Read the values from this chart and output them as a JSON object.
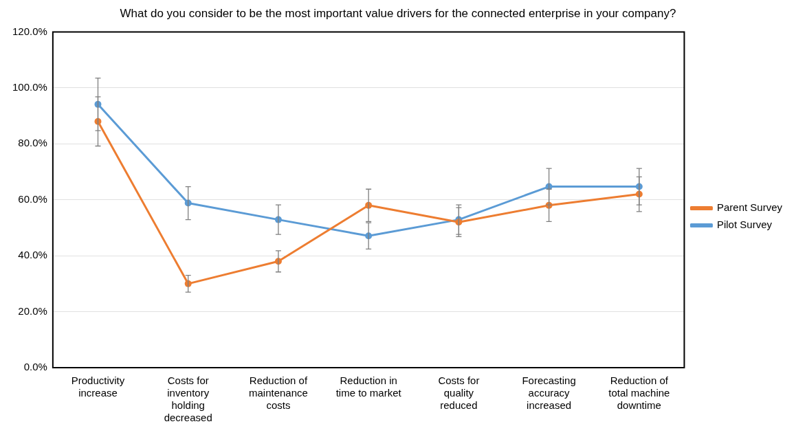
{
  "chart_data": {
    "type": "line",
    "title": "What do you consider to be the most important value drivers for the connected enterprise in your company?",
    "categories": [
      "Productivity increase",
      "Costs for inventory holding decreased",
      "Reduction of maintenance costs",
      "Reduction in time to market",
      "Costs for quality reduced",
      "Forecasting accuracy increased",
      "Reduction of total machine downtime"
    ],
    "series": [
      {
        "name": "Pilot Survey",
        "color": "#5b9bd5",
        "values": [
          94.1,
          58.8,
          52.9,
          47.1,
          52.9,
          64.7,
          64.7
        ],
        "errors": [
          9.4,
          5.9,
          5.3,
          4.7,
          5.3,
          6.5,
          6.5
        ]
      },
      {
        "name": "Parent Survey",
        "color": "#ed7d31",
        "values": [
          88,
          30,
          38,
          58,
          52,
          58,
          62
        ],
        "errors": [
          8.8,
          3,
          3.8,
          5.8,
          5.2,
          5.8,
          6.2
        ]
      }
    ],
    "ylim": [
      0,
      120
    ],
    "yticks": [
      {
        "value": 0,
        "label": "0.0%"
      },
      {
        "value": 20,
        "label": "20.0%"
      },
      {
        "value": 40,
        "label": "40.0%"
      },
      {
        "value": 60,
        "label": "60.0%"
      },
      {
        "value": 80,
        "label": "80.0%"
      },
      {
        "value": 100,
        "label": "100.0%"
      },
      {
        "value": 120,
        "label": "120.0%"
      }
    ],
    "grid": "y",
    "legend": "right",
    "marker": "circle",
    "line_style": "solid"
  }
}
